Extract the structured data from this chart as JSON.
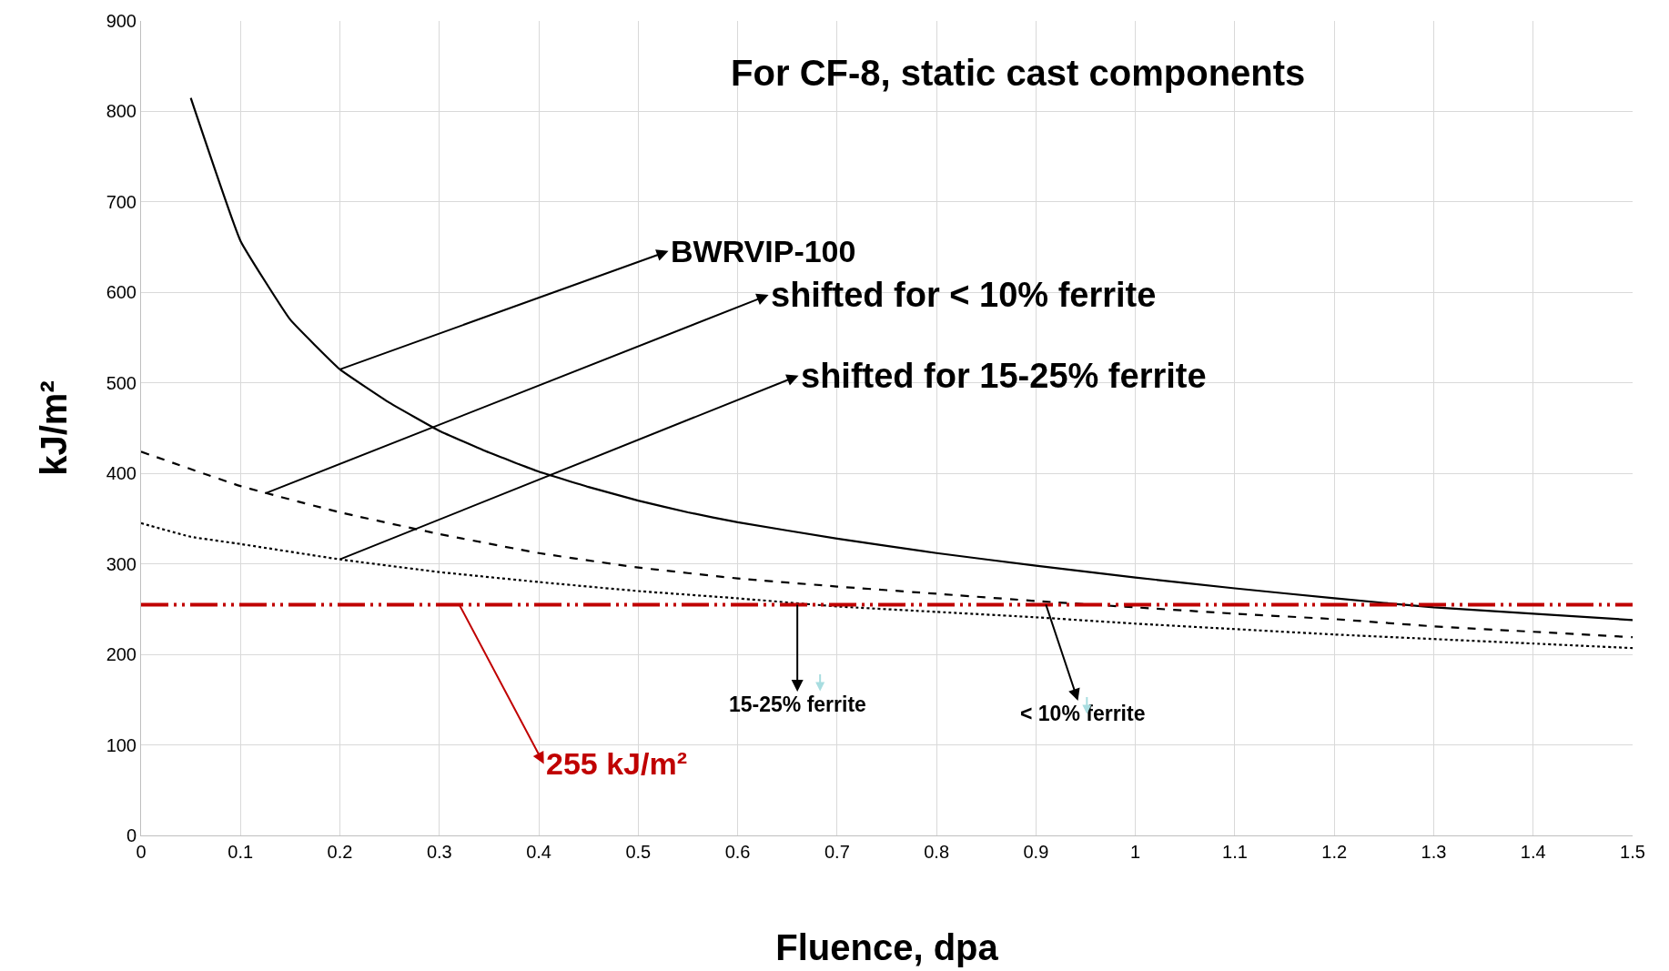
{
  "chart_data": {
    "type": "line",
    "title": "For CF-8, static cast components",
    "xlabel": "Fluence, dpa",
    "ylabel": "kJ/m²",
    "xlim": [
      0,
      1.5
    ],
    "xticks": [
      0,
      0.1,
      0.2,
      0.3,
      0.4,
      0.5,
      0.6,
      0.7,
      0.8,
      0.9,
      1,
      1.1,
      1.2,
      1.3,
      1.4,
      1.5
    ],
    "ylim": [
      0,
      900
    ],
    "yticks": [
      0,
      100,
      200,
      300,
      400,
      500,
      600,
      700,
      800,
      900
    ],
    "grid": true,
    "marker": "none",
    "series": [
      {
        "color": "#000000",
        "line_style": "solid",
        "x": [
          0.05,
          0.1,
          0.15,
          0.2,
          0.25,
          0.3,
          0.35,
          0.4,
          0.45,
          0.5,
          0.55,
          0.6,
          0.7,
          0.8,
          0.9,
          1.0,
          1.1,
          1.2,
          1.3,
          1.4,
          1.5
        ],
        "values": [
          815,
          657,
          570,
          515,
          478,
          447,
          423,
          402,
          385,
          370,
          357,
          346,
          328,
          312,
          298,
          285,
          273,
          262,
          252,
          245,
          238
        ]
      },
      {
        "color": "#000000",
        "line_style": "dashed",
        "x": [
          0,
          0.1,
          0.2,
          0.3,
          0.4,
          0.5,
          0.6,
          0.7,
          0.8,
          0.9,
          1.0,
          1.1,
          1.2,
          1.3,
          1.4,
          1.5
        ],
        "values": [
          424,
          386,
          357,
          333,
          312,
          296,
          284,
          275,
          267,
          259,
          252,
          245,
          239,
          231,
          225,
          219
        ]
      },
      {
        "color": "#000000",
        "line_style": "dotted",
        "x": [
          0,
          0.05,
          0.1,
          0.2,
          0.3,
          0.4,
          0.5,
          0.6,
          0.7,
          0.8,
          0.9,
          1.0,
          1.1,
          1.2,
          1.3,
          1.4,
          1.5
        ],
        "values": [
          345,
          330,
          322,
          305,
          291,
          280,
          270,
          262,
          253,
          247,
          241,
          234,
          228,
          222,
          217,
          212,
          207
        ]
      }
    ],
    "ref_lines": [
      {
        "axis": "y",
        "value": 255,
        "color": "#c00000",
        "line_style": "dashdotdot"
      }
    ],
    "annotations": [
      {
        "text": "BWRVIP-100",
        "x": 0.2,
        "y": 515
      },
      {
        "text": "shifted for < 10% ferrite",
        "x": 0.125,
        "y": 378
      },
      {
        "text": "shifted for 15-25% ferrite",
        "x": 0.2,
        "y": 305
      },
      {
        "text": "255 kJ/m²",
        "x": 0.32,
        "y": 255
      },
      {
        "text": "15-25% ferrite",
        "x": 0.66,
        "y": 255
      },
      {
        "text": "< 10% ferrite",
        "x": 0.91,
        "y": 255
      }
    ]
  }
}
